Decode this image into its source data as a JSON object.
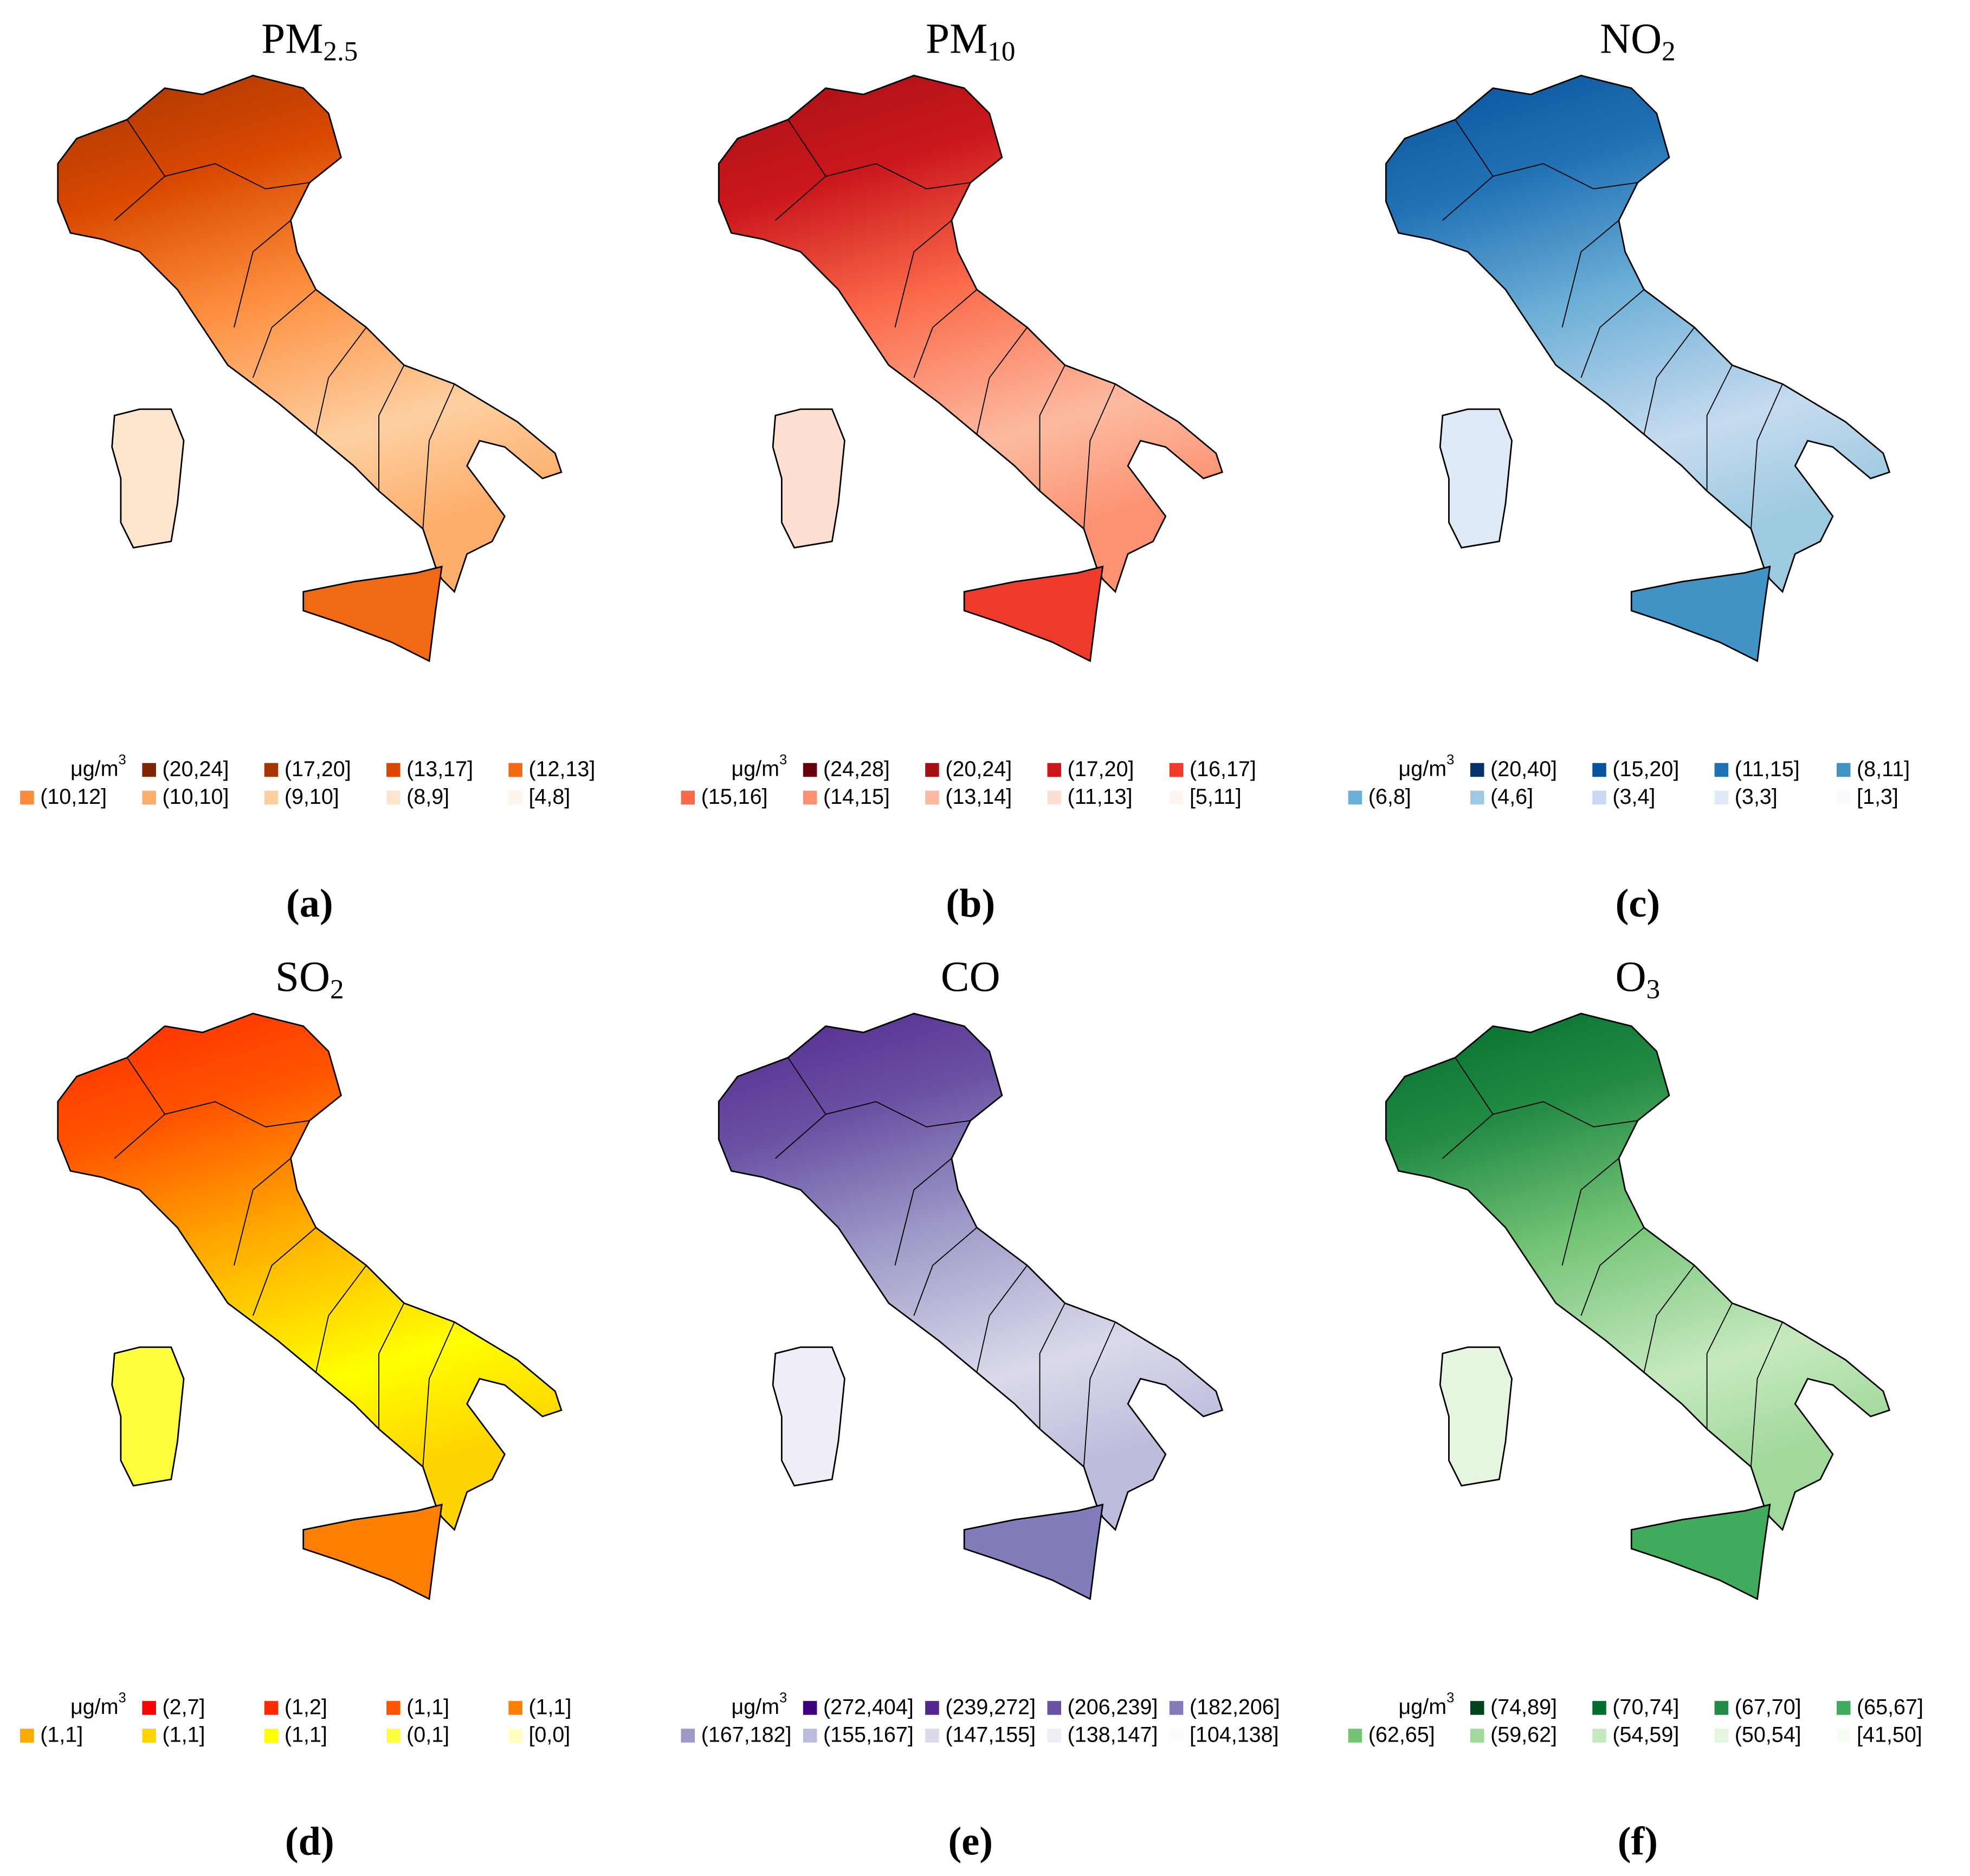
{
  "panels": [
    {
      "title": {
        "base": "PM",
        "sub": "2.5"
      },
      "unit": {
        "base": "μg/m",
        "sup": "3"
      },
      "caption": "(a)",
      "legend": [
        {
          "label": "(20,24]",
          "color": "#7f2704"
        },
        {
          "label": "(17,20]",
          "color": "#a63603"
        },
        {
          "label": "(13,17]",
          "color": "#d94801"
        },
        {
          "label": "(12,13]",
          "color": "#f16913"
        },
        {
          "label": "(10,12]",
          "color": "#fd8d3c"
        },
        {
          "label": "(10,10]",
          "color": "#fdae6b"
        },
        {
          "label": "(9,10]",
          "color": "#fdd0a2"
        },
        {
          "label": "(8,9]",
          "color": "#fee6ce"
        },
        {
          "label": "[4,8]",
          "color": "#fff5eb"
        }
      ]
    },
    {
      "title": {
        "base": "PM",
        "sub": "10"
      },
      "unit": {
        "base": "μg/m",
        "sup": "3"
      },
      "caption": "(b)",
      "legend": [
        {
          "label": "(24,28]",
          "color": "#67000d"
        },
        {
          "label": "(20,24]",
          "color": "#a50f15"
        },
        {
          "label": "(17,20]",
          "color": "#cb181d"
        },
        {
          "label": "(16,17]",
          "color": "#ef3b2c"
        },
        {
          "label": "(15,16]",
          "color": "#fb6a4a"
        },
        {
          "label": "(14,15]",
          "color": "#fc9272"
        },
        {
          "label": "(13,14]",
          "color": "#fcbba1"
        },
        {
          "label": "(11,13]",
          "color": "#fee0d2"
        },
        {
          "label": "[5,11]",
          "color": "#fff5f0"
        }
      ]
    },
    {
      "title": {
        "base": "NO",
        "sub": "2"
      },
      "unit": {
        "base": "μg/m",
        "sup": "3"
      },
      "caption": "(c)",
      "legend": [
        {
          "label": "(20,40]",
          "color": "#08306b"
        },
        {
          "label": "(15,20]",
          "color": "#08519c"
        },
        {
          "label": "(11,15]",
          "color": "#2171b5"
        },
        {
          "label": "(8,11]",
          "color": "#4292c6"
        },
        {
          "label": "(6,8]",
          "color": "#6baed6"
        },
        {
          "label": "(4,6]",
          "color": "#9ecae1"
        },
        {
          "label": "(3,4]",
          "color": "#c6dbef"
        },
        {
          "label": "(3,3]",
          "color": "#deebf7"
        },
        {
          "label": "[1,3]",
          "color": "#f7fbff"
        }
      ]
    },
    {
      "title": {
        "base": "SO",
        "sub": "2"
      },
      "unit": {
        "base": "μg/m",
        "sup": "3"
      },
      "caption": "(d)",
      "legend": [
        {
          "label": "(2,7]",
          "color": "#ff0000"
        },
        {
          "label": "(1,2]",
          "color": "#ff2a00"
        },
        {
          "label": "(1,1]",
          "color": "#ff5500"
        },
        {
          "label": "(1,1]",
          "color": "#ff8000"
        },
        {
          "label": "(1,1]",
          "color": "#ffaa00"
        },
        {
          "label": "(1,1]",
          "color": "#ffd400"
        },
        {
          "label": "(1,1]",
          "color": "#ffff00"
        },
        {
          "label": "(0,1]",
          "color": "#ffff40"
        },
        {
          "label": "[0,0]",
          "color": "#ffffbf"
        }
      ]
    },
    {
      "title": {
        "base": "CO",
        "sub": ""
      },
      "unit": {
        "base": "μg/m",
        "sup": "3"
      },
      "caption": "(e)",
      "legend": [
        {
          "label": "(272,404]",
          "color": "#3f007d"
        },
        {
          "label": "(239,272]",
          "color": "#54278f"
        },
        {
          "label": "(206,239]",
          "color": "#6a51a3"
        },
        {
          "label": "(182,206]",
          "color": "#807dba"
        },
        {
          "label": "(167,182]",
          "color": "#9e9ac8"
        },
        {
          "label": "(155,167]",
          "color": "#bcbddc"
        },
        {
          "label": "(147,155]",
          "color": "#dadaeb"
        },
        {
          "label": "(138,147]",
          "color": "#efedf5"
        },
        {
          "label": "[104,138]",
          "color": "#fcfbfd"
        }
      ]
    },
    {
      "title": {
        "base": "O",
        "sub": "3"
      },
      "unit": {
        "base": "μg/m",
        "sup": "3"
      },
      "caption": "(f)",
      "legend": [
        {
          "label": "(74,89]",
          "color": "#00441b"
        },
        {
          "label": "(70,74]",
          "color": "#006d2c"
        },
        {
          "label": "(67,70]",
          "color": "#238b45"
        },
        {
          "label": "(65,67]",
          "color": "#41ab5d"
        },
        {
          "label": "(62,65]",
          "color": "#74c476"
        },
        {
          "label": "(59,62]",
          "color": "#a1d99b"
        },
        {
          "label": "(54,59]",
          "color": "#c7e9c0"
        },
        {
          "label": "(50,54]",
          "color": "#e5f5e0"
        },
        {
          "label": "[41,50]",
          "color": "#f7fcf5"
        }
      ]
    }
  ]
}
